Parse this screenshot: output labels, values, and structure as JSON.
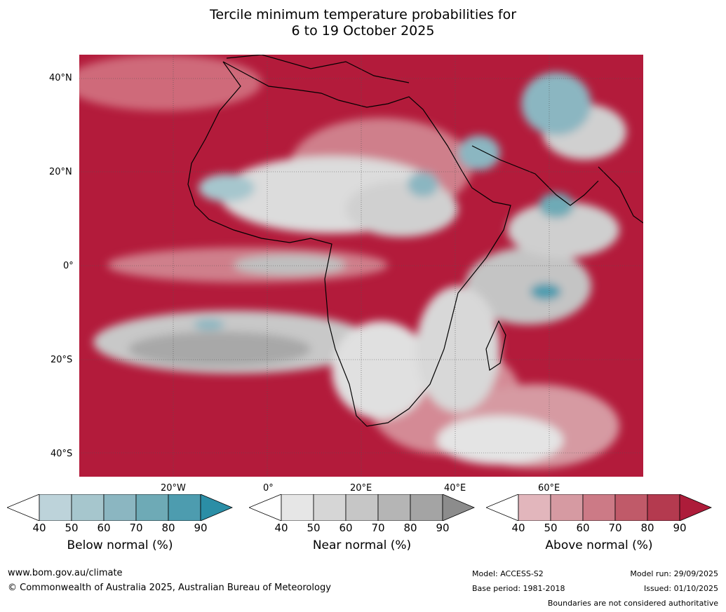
{
  "title": {
    "line1": "Tercile minimum temperature probabilities for",
    "line2": "6 to 19 October 2025"
  },
  "map": {
    "lat_labels": [
      "40°N",
      "20°N",
      "0°",
      "20°S",
      "40°S"
    ],
    "lon_labels": [
      "20°W",
      "0°",
      "20°E",
      "40°E",
      "60°E"
    ]
  },
  "legends": [
    {
      "label": "Below normal (%)",
      "ticks": [
        "40",
        "50",
        "60",
        "70",
        "80",
        "90"
      ],
      "colors": [
        "#bdd3da",
        "#a6c6cd",
        "#8bb6c1",
        "#6eaab6",
        "#4d9caf",
        "#2b8ea6"
      ]
    },
    {
      "label": "Near normal (%)",
      "ticks": [
        "40",
        "50",
        "60",
        "70",
        "80",
        "90"
      ],
      "colors": [
        "#e6e6e6",
        "#d6d6d6",
        "#c6c6c6",
        "#b5b5b5",
        "#a4a4a4",
        "#8c8c8c"
      ]
    },
    {
      "label": "Above normal (%)",
      "ticks": [
        "40",
        "50",
        "60",
        "70",
        "80",
        "90"
      ],
      "colors": [
        "#e2b6bc",
        "#d69aa2",
        "#cc7a86",
        "#c05a69",
        "#b43a4f",
        "#ad1c3a"
      ]
    }
  ],
  "footer": {
    "website": "www.bom.gov.au/climate",
    "copyright": "© Commonwealth of Australia 2025, Australian Bureau of Meteorology",
    "model": "Model: ACCESS-S2",
    "base_period": "Base period: 1981-2018",
    "model_run": "Model run: 29/09/2025",
    "issued": "Issued: 01/10/2025",
    "disclaimer": "Boundaries are not considered authoritative"
  }
}
